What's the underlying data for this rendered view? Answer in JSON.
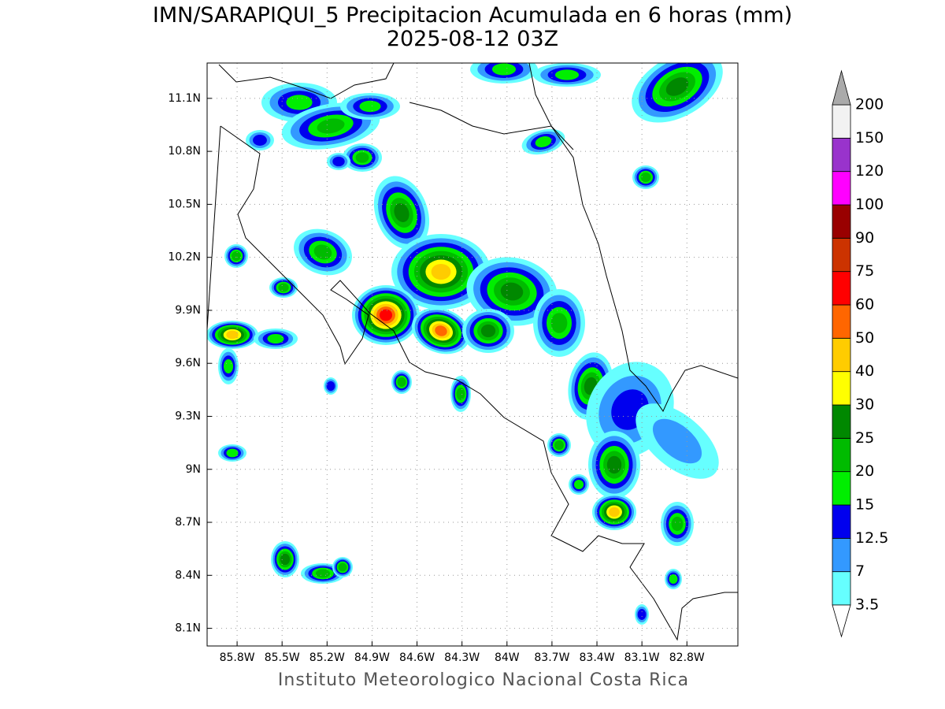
{
  "header": {
    "title": "IMN/SARAPIQUI_5 Precipitacion Acumulada en 6 horas (mm)",
    "subtitle": "2025-08-12 03Z"
  },
  "map": {
    "xlim": [
      -86.0,
      -82.46
    ],
    "ylim": [
      8.0,
      11.3
    ],
    "xticks": [
      {
        "value": -85.8,
        "label": "85.8W"
      },
      {
        "value": -85.5,
        "label": "85.5W"
      },
      {
        "value": -85.2,
        "label": "85.2W"
      },
      {
        "value": -84.9,
        "label": "84.9W"
      },
      {
        "value": -84.6,
        "label": "84.6W"
      },
      {
        "value": -84.3,
        "label": "84.3W"
      },
      {
        "value": -84.0,
        "label": "84W"
      },
      {
        "value": -83.7,
        "label": "83.7W"
      },
      {
        "value": -83.4,
        "label": "83.4W"
      },
      {
        "value": -83.1,
        "label": "83.1W"
      },
      {
        "value": -82.8,
        "label": "82.8W"
      }
    ],
    "yticks": [
      {
        "value": 8.1,
        "label": "8.1N"
      },
      {
        "value": 8.4,
        "label": "8.4N"
      },
      {
        "value": 8.7,
        "label": "8.7N"
      },
      {
        "value": 9.0,
        "label": "9N"
      },
      {
        "value": 9.3,
        "label": "9.3N"
      },
      {
        "value": 9.6,
        "label": "9.6N"
      },
      {
        "value": 9.9,
        "label": "9.9N"
      },
      {
        "value": 10.2,
        "label": "10.2N"
      },
      {
        "value": 10.5,
        "label": "10.5N"
      },
      {
        "value": 10.8,
        "label": "10.8N"
      },
      {
        "value": 11.1,
        "label": "11.1N"
      }
    ],
    "grid": true
  },
  "colorbar": {
    "levels": [
      3.5,
      7,
      12.5,
      15,
      20,
      25,
      30,
      40,
      50,
      60,
      75,
      90,
      100,
      120,
      150,
      200
    ],
    "colors": [
      "#66ffff",
      "#3399ff",
      "#0000ee",
      "#00ee00",
      "#00bb00",
      "#008800",
      "#ffff00",
      "#ffcc00",
      "#ff6600",
      "#ff0000",
      "#cc3300",
      "#990000",
      "#ff00ff",
      "#9933cc",
      "#f2f2f2"
    ],
    "under_color": "#ffffff",
    "over_color": "#aaaaaa"
  },
  "footer": "Instituto Meteorologico Nacional Costa Rica"
}
